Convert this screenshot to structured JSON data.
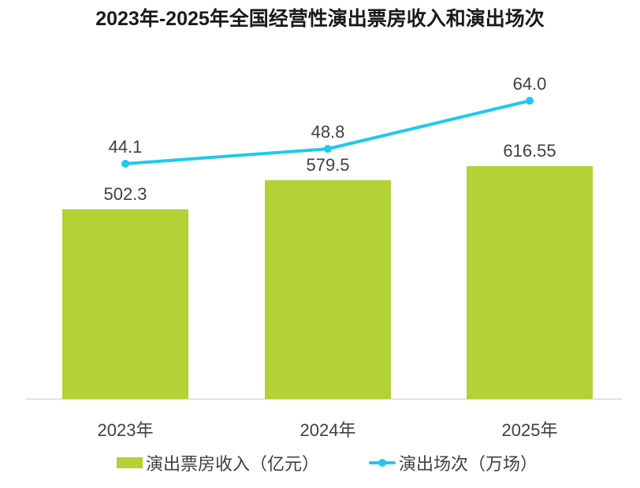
{
  "chart_data": {
    "type": "bar",
    "title": "2023年-2025年全国经营性演出票房收入和演出场次",
    "categories": [
      "2023年",
      "2024年",
      "2025年"
    ],
    "series": [
      {
        "name": "演出票房收入（亿元）",
        "type": "bar",
        "values": [
          502.3,
          579.5,
          616.55
        ],
        "labels": [
          "502.3",
          "579.5",
          "616.55"
        ],
        "color": "#b2d235"
      },
      {
        "name": "演出场次（万场）",
        "type": "line",
        "values": [
          44.1,
          48.8,
          64.0
        ],
        "labels": [
          "44.1",
          "48.8",
          "64.0"
        ],
        "color": "#1fc8f0"
      }
    ],
    "xlabel": "",
    "ylabel": "",
    "grid": false,
    "legend": "bottom"
  }
}
